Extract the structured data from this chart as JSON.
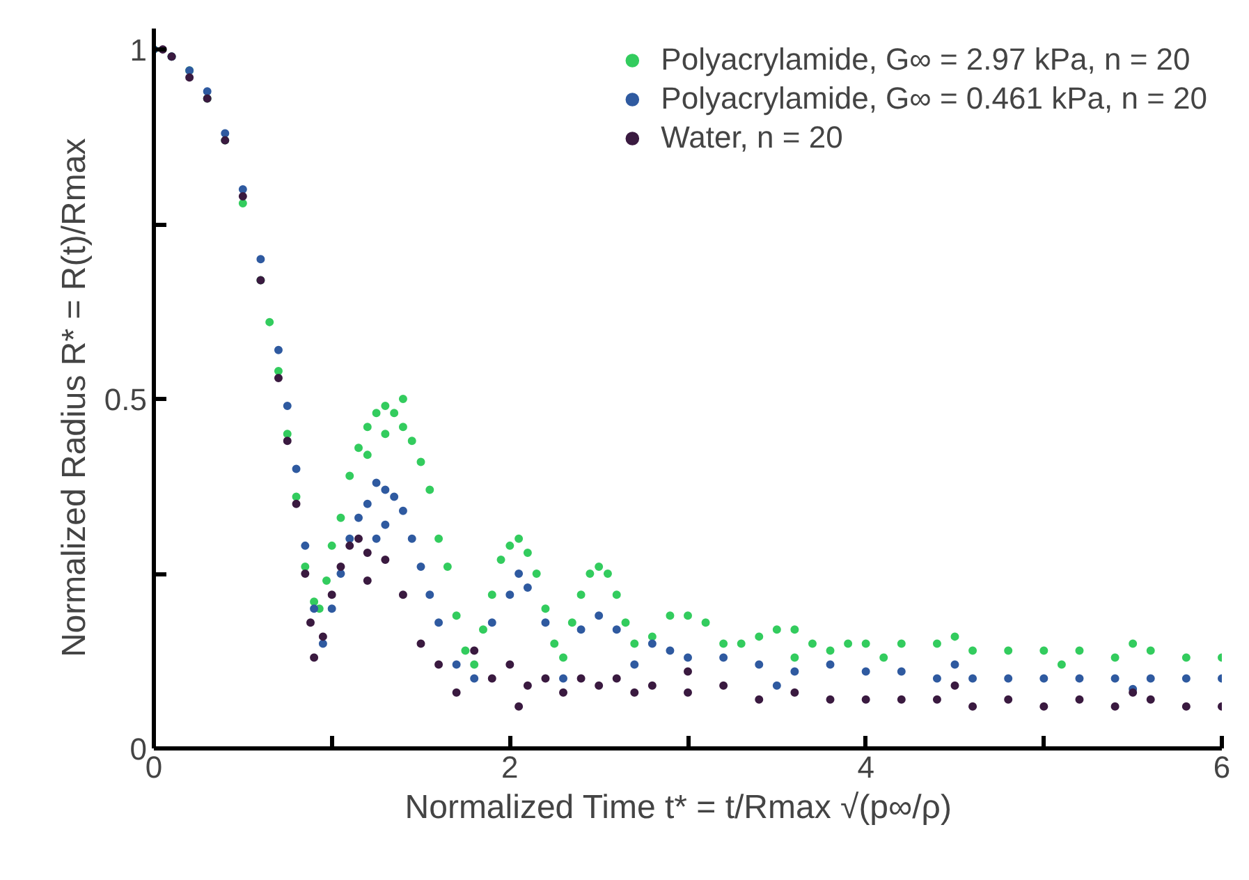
{
  "chart_data": {
    "type": "scatter",
    "xlabel": "Normalized Time   t* = t/Rmax √(p∞/ρ)",
    "ylabel": "Normalized Radius   R* = R(t)/Rmax",
    "xlim": [
      0,
      6
    ],
    "ylim": [
      0,
      1.03
    ],
    "xticks": [
      0,
      {
        "value": 1,
        "label": null
      },
      2,
      {
        "value": 3,
        "label": null
      },
      4,
      {
        "value": 5,
        "label": null
      },
      6
    ],
    "yticks": [
      0,
      {
        "value": 0.25,
        "label": null
      },
      0.5,
      {
        "value": 0.75,
        "label": null
      },
      1
    ],
    "grid": false,
    "legend": "top right",
    "marker": "circle",
    "series": [
      {
        "name": "Polyacrylamide, G∞ = 2.97 kPa, n = 20",
        "color": "#33cc5e",
        "x": [
          0,
          0.1,
          0.2,
          0.3,
          0.4,
          0.5,
          0.6,
          0.65,
          0.7,
          0.75,
          0.8,
          0.85,
          0.9,
          0.93,
          0.97,
          1.0,
          1.05,
          1.1,
          1.15,
          1.2,
          1.25,
          1.3,
          1.35,
          1.4,
          1.45,
          1.5,
          1.55,
          1.6,
          1.65,
          1.7,
          1.75,
          1.8,
          1.85,
          1.9,
          1.95,
          2.0,
          2.05,
          2.1,
          2.15,
          2.2,
          2.25,
          2.3,
          2.35,
          2.4,
          2.45,
          2.5,
          2.55,
          2.6,
          2.65,
          2.7,
          2.8,
          2.9,
          3.0,
          3.1,
          3.2,
          3.3,
          3.4,
          3.5,
          3.6,
          3.7,
          3.8,
          3.9,
          4.0,
          4.2,
          4.4,
          4.6,
          4.8,
          5.0,
          5.2,
          5.4,
          5.6,
          5.8,
          6.0,
          4.1,
          4.5,
          5.1,
          5.5,
          1.3,
          1.4,
          1.2,
          3.6
        ],
        "values": [
          1,
          0.99,
          0.97,
          0.93,
          0.87,
          0.78,
          0.67,
          0.61,
          0.54,
          0.45,
          0.36,
          0.26,
          0.21,
          0.2,
          0.24,
          0.29,
          0.33,
          0.39,
          0.43,
          0.46,
          0.48,
          0.49,
          0.48,
          0.46,
          0.44,
          0.41,
          0.37,
          0.3,
          0.26,
          0.19,
          0.14,
          0.12,
          0.17,
          0.22,
          0.27,
          0.29,
          0.3,
          0.28,
          0.25,
          0.2,
          0.15,
          0.13,
          0.18,
          0.22,
          0.25,
          0.26,
          0.25,
          0.22,
          0.18,
          0.15,
          0.16,
          0.19,
          0.19,
          0.18,
          0.15,
          0.15,
          0.16,
          0.17,
          0.17,
          0.15,
          0.14,
          0.15,
          0.15,
          0.15,
          0.15,
          0.14,
          0.14,
          0.14,
          0.14,
          0.13,
          0.14,
          0.13,
          0.13,
          0.13,
          0.16,
          0.12,
          0.15,
          0.45,
          0.5,
          0.42,
          0.13
        ]
      },
      {
        "name": "Polyacrylamide, G∞ = 0.461 kPa, n = 20",
        "color": "#2f5aa0",
        "x": [
          0,
          0.1,
          0.2,
          0.3,
          0.4,
          0.5,
          0.6,
          0.7,
          0.75,
          0.8,
          0.85,
          0.9,
          0.95,
          1.0,
          1.05,
          1.1,
          1.15,
          1.2,
          1.25,
          1.3,
          1.35,
          1.4,
          1.45,
          1.5,
          1.55,
          1.6,
          1.7,
          1.8,
          1.9,
          2.0,
          2.05,
          2.1,
          2.2,
          2.3,
          2.4,
          2.5,
          2.6,
          2.7,
          2.8,
          2.9,
          3.0,
          3.2,
          3.4,
          3.6,
          3.8,
          4.0,
          4.2,
          4.4,
          4.6,
          4.8,
          5.0,
          5.2,
          5.4,
          5.6,
          5.8,
          6.0,
          1.3,
          1.25,
          4.5,
          5.5,
          3.5
        ],
        "values": [
          1,
          0.99,
          0.97,
          0.94,
          0.88,
          0.8,
          0.7,
          0.57,
          0.49,
          0.4,
          0.29,
          0.2,
          0.15,
          0.2,
          0.25,
          0.3,
          0.33,
          0.35,
          0.38,
          0.37,
          0.36,
          0.34,
          0.3,
          0.26,
          0.22,
          0.18,
          0.12,
          0.1,
          0.18,
          0.22,
          0.25,
          0.23,
          0.18,
          0.1,
          0.17,
          0.19,
          0.17,
          0.12,
          0.15,
          0.14,
          0.13,
          0.13,
          0.12,
          0.11,
          0.12,
          0.11,
          0.11,
          0.1,
          0.1,
          0.1,
          0.1,
          0.1,
          0.1,
          0.1,
          0.1,
          0.1,
          0.32,
          0.3,
          0.12,
          0.085,
          0.09
        ]
      },
      {
        "name": "Water, n = 20",
        "color": "#3a1a40",
        "x": [
          0.05,
          0.1,
          0.2,
          0.3,
          0.4,
          0.5,
          0.6,
          0.7,
          0.75,
          0.8,
          0.85,
          0.88,
          0.9,
          0.95,
          1.0,
          1.05,
          1.1,
          1.15,
          1.2,
          1.3,
          1.4,
          1.5,
          1.6,
          1.7,
          1.8,
          1.9,
          2.0,
          2.1,
          2.2,
          2.3,
          2.4,
          2.5,
          2.6,
          2.7,
          2.8,
          3.0,
          3.2,
          3.4,
          3.6,
          3.8,
          4.0,
          4.2,
          4.4,
          4.6,
          4.8,
          5.0,
          5.2,
          5.4,
          5.6,
          5.8,
          6.0,
          1.2,
          2.05,
          3.0,
          4.5,
          5.5
        ],
        "values": [
          1,
          0.99,
          0.96,
          0.93,
          0.87,
          0.79,
          0.67,
          0.53,
          0.44,
          0.35,
          0.25,
          0.18,
          0.13,
          0.16,
          0.22,
          0.26,
          0.29,
          0.3,
          0.28,
          0.27,
          0.22,
          0.15,
          0.12,
          0.08,
          0.14,
          0.1,
          0.12,
          0.09,
          0.1,
          0.08,
          0.1,
          0.09,
          0.1,
          0.08,
          0.09,
          0.08,
          0.09,
          0.07,
          0.08,
          0.07,
          0.07,
          0.07,
          0.07,
          0.06,
          0.07,
          0.06,
          0.07,
          0.06,
          0.07,
          0.06,
          0.06,
          0.24,
          0.06,
          0.11,
          0.09,
          0.08
        ]
      }
    ]
  }
}
